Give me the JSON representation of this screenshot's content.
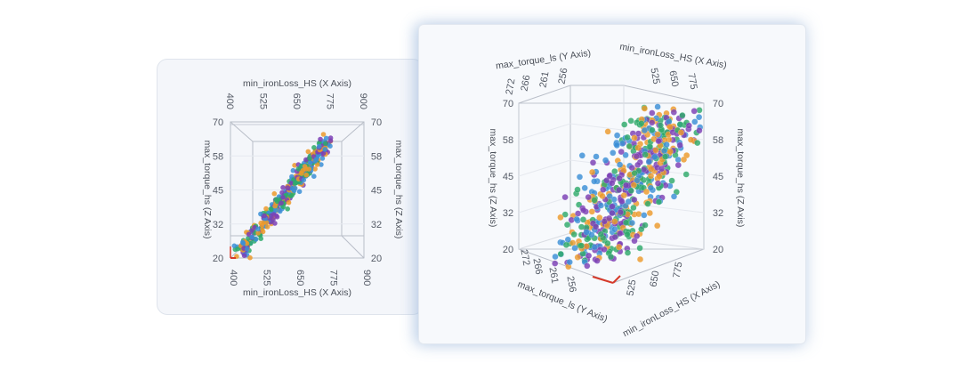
{
  "colors": {
    "series": [
      "#2eaa6a",
      "#7b3fb5",
      "#ec9a2b",
      "#3b8fd6"
    ],
    "axis_red": "#d63a2a",
    "card_bg": "#f4f6fa"
  },
  "chart_data": [
    {
      "type": "scatter",
      "view": "front-orthographic",
      "x_axis": {
        "label": "min_ironLoss_HS (X Axis)",
        "range": [
          400,
          900
        ],
        "ticks": [
          "400",
          "525",
          "650",
          "775",
          "900"
        ]
      },
      "z_axis": {
        "label": "max_torque_hs (Z Axis)",
        "range": [
          20,
          70
        ],
        "ticks": [
          "20",
          "32",
          "45",
          "58",
          "70"
        ]
      },
      "points_description": "dense positively-correlated cloud from (400,20) to (780,67)"
    },
    {
      "type": "scatter",
      "view": "rotated-3d",
      "x_axis": {
        "label": "min_ironLoss_HS (X Axis)",
        "ticks": [
          "525",
          "650",
          "775"
        ]
      },
      "y_axis": {
        "label": "max_torque_ls (Y Axis)",
        "ticks": [
          "272",
          "266",
          "261",
          "256"
        ]
      },
      "z_axis": {
        "label": "max_torque_hs (Z Axis)",
        "range": [
          20,
          70
        ],
        "ticks": [
          "20",
          "32",
          "45",
          "58",
          "70"
        ]
      },
      "points_description": "broad cloud rising toward high Z"
    }
  ]
}
